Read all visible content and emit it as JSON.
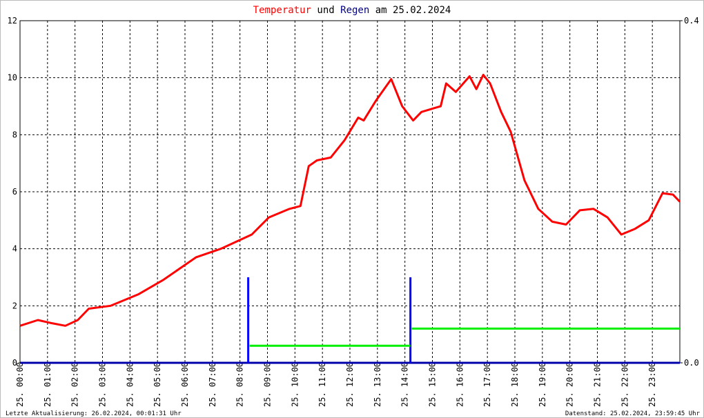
{
  "chart_data": {
    "type": "line",
    "title": [
      {
        "text": "Temperatur",
        "color": "#ff0000"
      },
      {
        "text": "und",
        "color": "#000000"
      },
      {
        "text": "Regen",
        "color": "#000080"
      },
      {
        "text": "am 25.02.2024",
        "color": "#000000"
      }
    ],
    "xlim": [
      0,
      24
    ],
    "xticks": [
      {
        "value": 0,
        "label": "25. 00:00"
      },
      {
        "value": 1,
        "label": "25. 01:00"
      },
      {
        "value": 2,
        "label": "25. 02:00"
      },
      {
        "value": 3,
        "label": "25. 03:00"
      },
      {
        "value": 4,
        "label": "25. 04:00"
      },
      {
        "value": 5,
        "label": "25. 05:00"
      },
      {
        "value": 6,
        "label": "25. 06:00"
      },
      {
        "value": 7,
        "label": "25. 07:00"
      },
      {
        "value": 8,
        "label": "25. 08:00"
      },
      {
        "value": 9,
        "label": "25. 09:00"
      },
      {
        "value": 10,
        "label": "25. 10:00"
      },
      {
        "value": 11,
        "label": "25. 11:00"
      },
      {
        "value": 12,
        "label": "25. 12:00"
      },
      {
        "value": 13,
        "label": "25. 13:00"
      },
      {
        "value": 14,
        "label": "25. 14:00"
      },
      {
        "value": 15,
        "label": "25. 15:00"
      },
      {
        "value": 16,
        "label": "25. 16:00"
      },
      {
        "value": 17,
        "label": "25. 17:00"
      },
      {
        "value": 18,
        "label": "25. 18:00"
      },
      {
        "value": 19,
        "label": "25. 19:00"
      },
      {
        "value": 20,
        "label": "25. 20:00"
      },
      {
        "value": 21,
        "label": "25. 21:00"
      },
      {
        "value": 22,
        "label": "25. 22:00"
      },
      {
        "value": 23,
        "label": "25. 23:00"
      }
    ],
    "ylim": [
      0,
      12
    ],
    "yticks": [
      0,
      2,
      4,
      6,
      8,
      10,
      12
    ],
    "y2lim": [
      0,
      0.4
    ],
    "y2ticks": [
      {
        "value": 0,
        "label": "0.0"
      },
      0.4
    ],
    "grid": true,
    "series": [
      {
        "name": "Temperatur",
        "color": "#ff0000",
        "x": [
          0,
          0.65,
          1.1,
          1.65,
          2.1,
          2.5,
          3.3,
          4.3,
          5.2,
          6.4,
          7.3,
          8.43,
          9.05,
          9.8,
          10.2,
          10.5,
          10.8,
          11.3,
          11.8,
          12.3,
          12.5,
          12.95,
          13.5,
          13.9,
          14.3,
          14.6,
          15.3,
          15.5,
          15.85,
          16.35,
          16.6,
          16.85,
          17.1,
          17.5,
          17.85,
          18.35,
          18.85,
          19.36,
          19.86,
          20.36,
          20.86,
          21.37,
          21.87,
          22.37,
          22.87,
          23.37,
          23.75,
          24
        ],
        "values": [
          1.3,
          1.5,
          1.4,
          1.3,
          1.5,
          1.9,
          2.0,
          2.4,
          2.9,
          3.7,
          4.0,
          4.5,
          5.1,
          5.4,
          5.5,
          6.9,
          7.1,
          7.2,
          7.8,
          8.6,
          8.5,
          9.2,
          9.95,
          9.0,
          8.5,
          8.8,
          9.0,
          9.8,
          9.5,
          10.05,
          9.6,
          10.1,
          9.8,
          8.8,
          8.1,
          6.4,
          5.4,
          4.95,
          4.85,
          5.35,
          5.4,
          5.1,
          4.5,
          4.7,
          5.0,
          5.95,
          5.9,
          5.65
        ]
      },
      {
        "name": "Regen",
        "color": "#0000ff",
        "type": "bar",
        "axis": "y2",
        "x": [
          8.3,
          14.2
        ],
        "values": [
          0.1,
          0.1
        ]
      },
      {
        "color": "#00ee00",
        "axis": "y2",
        "x": [
          8.35,
          14.2,
          null,
          14.25,
          24
        ],
        "values": [
          0.02,
          0.02,
          null,
          0.04,
          0.04
        ]
      }
    ]
  },
  "footer": {
    "left": "Letzte Aktualisierung: 26.02.2024, 00:01:31 Uhr",
    "right": "Datenstand: 25.02.2024, 23:59:45 Uhr"
  }
}
